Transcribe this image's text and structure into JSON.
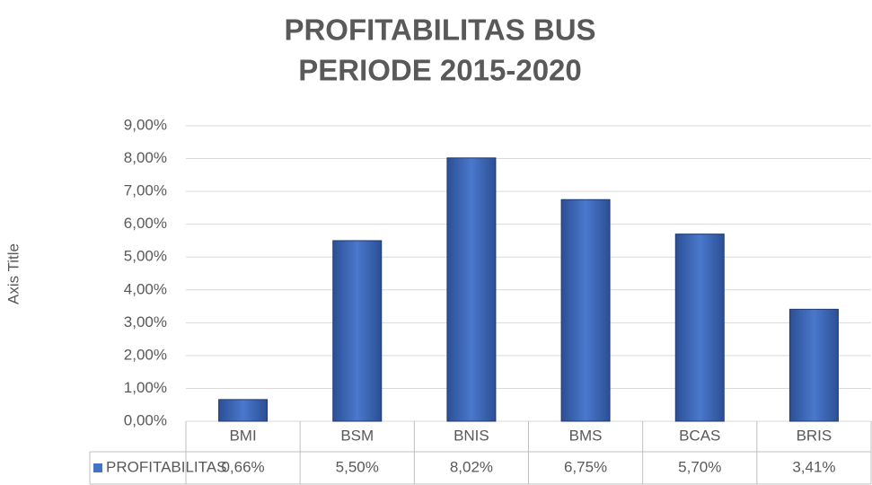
{
  "chart_data": {
    "type": "bar",
    "title": "PROFITABILITAS BUS",
    "subtitle": "PERIODE 2015-2020",
    "y_label": "Axis Title",
    "categories": [
      "BMI",
      "BSM",
      "BNIS",
      "BMS",
      "BCAS",
      "BRIS"
    ],
    "series": [
      {
        "name": "PROFITABILITAS",
        "color": "#4472c4",
        "values": [
          0.66,
          5.5,
          8.02,
          6.75,
          5.7,
          3.41
        ],
        "value_labels": [
          "0,66%",
          "5,50%",
          "8,02%",
          "6,75%",
          "5,70%",
          "3,41%"
        ]
      }
    ],
    "ylim": [
      0,
      9
    ],
    "yticks": [
      {
        "value": 0,
        "label": "0,00%"
      },
      {
        "value": 1,
        "label": "1,00%"
      },
      {
        "value": 2,
        "label": "2,00%"
      },
      {
        "value": 3,
        "label": "3,00%"
      },
      {
        "value": 4,
        "label": "4,00%"
      },
      {
        "value": 5,
        "label": "5,00%"
      },
      {
        "value": 6,
        "label": "6,00%"
      },
      {
        "value": 7,
        "label": "7,00%"
      },
      {
        "value": 8,
        "label": "8,00%"
      },
      {
        "value": 9,
        "label": "9,00%"
      }
    ],
    "grid": true
  }
}
